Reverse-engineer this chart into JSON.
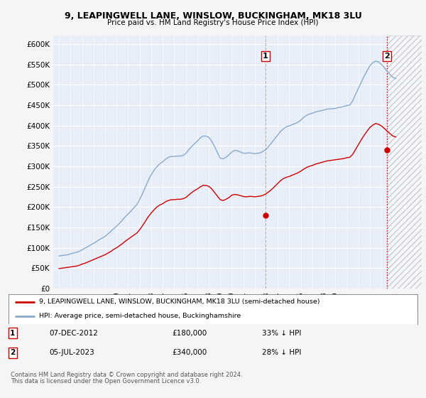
{
  "title": "9, LEAPINGWELL LANE, WINSLOW, BUCKINGHAM, MK18 3LU",
  "subtitle": "Price paid vs. HM Land Registry's House Price Index (HPI)",
  "ylim": [
    0,
    620000
  ],
  "yticks": [
    0,
    50000,
    100000,
    150000,
    200000,
    250000,
    300000,
    350000,
    400000,
    450000,
    500000,
    550000,
    600000
  ],
  "xlim_start": 1994.5,
  "xlim_end": 2026.5,
  "red_line_label": "9, LEAPINGWELL LANE, WINSLOW, BUCKINGHAM, MK18 3LU (semi-detached house)",
  "blue_line_label": "HPI: Average price, semi-detached house, Buckinghamshire",
  "sale1_date": "07-DEC-2012",
  "sale1_price": 180000,
  "sale1_label": "33% ↓ HPI",
  "sale1_x": 2012.92,
  "sale2_date": "05-JUL-2023",
  "sale2_price": 340000,
  "sale2_label": "28% ↓ HPI",
  "sale2_x": 2023.5,
  "footnote1": "Contains HM Land Registry data © Crown copyright and database right 2024.",
  "footnote2": "This data is licensed under the Open Government Licence v3.0.",
  "background_color": "#f5f5f5",
  "plot_bg_color": "#e8eef8",
  "red_color": "#cc0000",
  "blue_color": "#88aacc",
  "grid_color": "#ffffff",
  "hatch_color": "#cccccc",
  "hpi_data": {
    "years": [
      1995.0,
      1995.25,
      1995.5,
      1995.75,
      1996.0,
      1996.25,
      1996.5,
      1996.75,
      1997.0,
      1997.25,
      1997.5,
      1997.75,
      1998.0,
      1998.25,
      1998.5,
      1998.75,
      1999.0,
      1999.25,
      1999.5,
      1999.75,
      2000.0,
      2000.25,
      2000.5,
      2000.75,
      2001.0,
      2001.25,
      2001.5,
      2001.75,
      2002.0,
      2002.25,
      2002.5,
      2002.75,
      2003.0,
      2003.25,
      2003.5,
      2003.75,
      2004.0,
      2004.25,
      2004.5,
      2004.75,
      2005.0,
      2005.25,
      2005.5,
      2005.75,
      2006.0,
      2006.25,
      2006.5,
      2006.75,
      2007.0,
      2007.25,
      2007.5,
      2007.75,
      2008.0,
      2008.25,
      2008.5,
      2008.75,
      2009.0,
      2009.25,
      2009.5,
      2009.75,
      2010.0,
      2010.25,
      2010.5,
      2010.75,
      2011.0,
      2011.25,
      2011.5,
      2011.75,
      2012.0,
      2012.25,
      2012.5,
      2012.75,
      2013.0,
      2013.25,
      2013.5,
      2013.75,
      2014.0,
      2014.25,
      2014.5,
      2014.75,
      2015.0,
      2015.25,
      2015.5,
      2015.75,
      2016.0,
      2016.25,
      2016.5,
      2016.75,
      2017.0,
      2017.25,
      2017.5,
      2017.75,
      2018.0,
      2018.25,
      2018.5,
      2018.75,
      2019.0,
      2019.25,
      2019.5,
      2019.75,
      2020.0,
      2020.25,
      2020.5,
      2020.75,
      2021.0,
      2021.25,
      2021.5,
      2021.75,
      2022.0,
      2022.25,
      2022.5,
      2022.75,
      2023.0,
      2023.25,
      2023.5,
      2023.75,
      2024.0,
      2024.25
    ],
    "values": [
      80000,
      81000,
      82000,
      83000,
      85000,
      87000,
      89000,
      91000,
      95000,
      99000,
      103000,
      107000,
      111000,
      115000,
      120000,
      124000,
      128000,
      134000,
      140000,
      147000,
      153000,
      160000,
      168000,
      176000,
      183000,
      190000,
      198000,
      206000,
      218000,
      233000,
      249000,
      265000,
      279000,
      290000,
      299000,
      306000,
      311000,
      317000,
      322000,
      324000,
      324000,
      325000,
      325000,
      326000,
      331000,
      340000,
      348000,
      355000,
      361000,
      369000,
      374000,
      374000,
      371000,
      362000,
      349000,
      334000,
      320000,
      318000,
      322000,
      328000,
      335000,
      339000,
      338000,
      335000,
      332000,
      332000,
      333000,
      332000,
      331000,
      332000,
      333000,
      337000,
      342000,
      350000,
      359000,
      368000,
      377000,
      386000,
      392000,
      397000,
      399000,
      402000,
      405000,
      408000,
      413000,
      420000,
      425000,
      428000,
      430000,
      433000,
      435000,
      436000,
      438000,
      440000,
      441000,
      441000,
      442000,
      444000,
      445000,
      447000,
      449000,
      450000,
      460000,
      476000,
      491000,
      506000,
      521000,
      534000,
      547000,
      554000,
      558000,
      556000,
      550000,
      542000,
      533000,
      525000,
      518000,
      515000
    ]
  },
  "property_data": {
    "years": [
      1995.0,
      1995.25,
      1995.5,
      1995.75,
      1996.0,
      1996.25,
      1996.5,
      1996.75,
      1997.0,
      1997.25,
      1997.5,
      1997.75,
      1998.0,
      1998.25,
      1998.5,
      1998.75,
      1999.0,
      1999.25,
      1999.5,
      1999.75,
      2000.0,
      2000.25,
      2000.5,
      2000.75,
      2001.0,
      2001.25,
      2001.5,
      2001.75,
      2002.0,
      2002.25,
      2002.5,
      2002.75,
      2003.0,
      2003.25,
      2003.5,
      2003.75,
      2004.0,
      2004.25,
      2004.5,
      2004.75,
      2005.0,
      2005.25,
      2005.5,
      2005.75,
      2006.0,
      2006.25,
      2006.5,
      2006.75,
      2007.0,
      2007.25,
      2007.5,
      2007.75,
      2008.0,
      2008.25,
      2008.5,
      2008.75,
      2009.0,
      2009.25,
      2009.5,
      2009.75,
      2010.0,
      2010.25,
      2010.5,
      2010.75,
      2011.0,
      2011.25,
      2011.5,
      2011.75,
      2012.0,
      2012.25,
      2012.5,
      2012.75,
      2013.0,
      2013.25,
      2013.5,
      2013.75,
      2014.0,
      2014.25,
      2014.5,
      2014.75,
      2015.0,
      2015.25,
      2015.5,
      2015.75,
      2016.0,
      2016.25,
      2016.5,
      2016.75,
      2017.0,
      2017.25,
      2017.5,
      2017.75,
      2018.0,
      2018.25,
      2018.5,
      2018.75,
      2019.0,
      2019.25,
      2019.5,
      2019.75,
      2020.0,
      2020.25,
      2020.5,
      2020.75,
      2021.0,
      2021.25,
      2021.5,
      2021.75,
      2022.0,
      2022.25,
      2022.5,
      2022.75,
      2023.0,
      2023.25,
      2023.5,
      2023.75,
      2024.0,
      2024.25
    ],
    "values": [
      49000,
      50000,
      51000,
      52000,
      53000,
      54000,
      55000,
      57000,
      60000,
      62000,
      65000,
      68000,
      71000,
      74000,
      77000,
      80000,
      83000,
      87000,
      91000,
      96000,
      100000,
      105000,
      110000,
      116000,
      121000,
      126000,
      131000,
      136000,
      144000,
      154000,
      165000,
      176000,
      185000,
      193000,
      200000,
      205000,
      208000,
      213000,
      216000,
      218000,
      218000,
      219000,
      219000,
      220000,
      223000,
      229000,
      235000,
      240000,
      244000,
      249000,
      253000,
      253000,
      251000,
      245000,
      236000,
      227000,
      218000,
      216000,
      219000,
      223000,
      229000,
      231000,
      230000,
      228000,
      226000,
      225000,
      226000,
      226000,
      225000,
      226000,
      227000,
      229000,
      233000,
      238000,
      244000,
      251000,
      258000,
      265000,
      270000,
      273000,
      275000,
      278000,
      281000,
      284000,
      288000,
      293000,
      297000,
      300000,
      302000,
      305000,
      307000,
      309000,
      311000,
      313000,
      314000,
      315000,
      316000,
      317000,
      318000,
      319000,
      321000,
      322000,
      329000,
      341000,
      353000,
      365000,
      376000,
      386000,
      395000,
      401000,
      405000,
      403000,
      399000,
      393000,
      386000,
      380000,
      374000,
      372000
    ]
  }
}
